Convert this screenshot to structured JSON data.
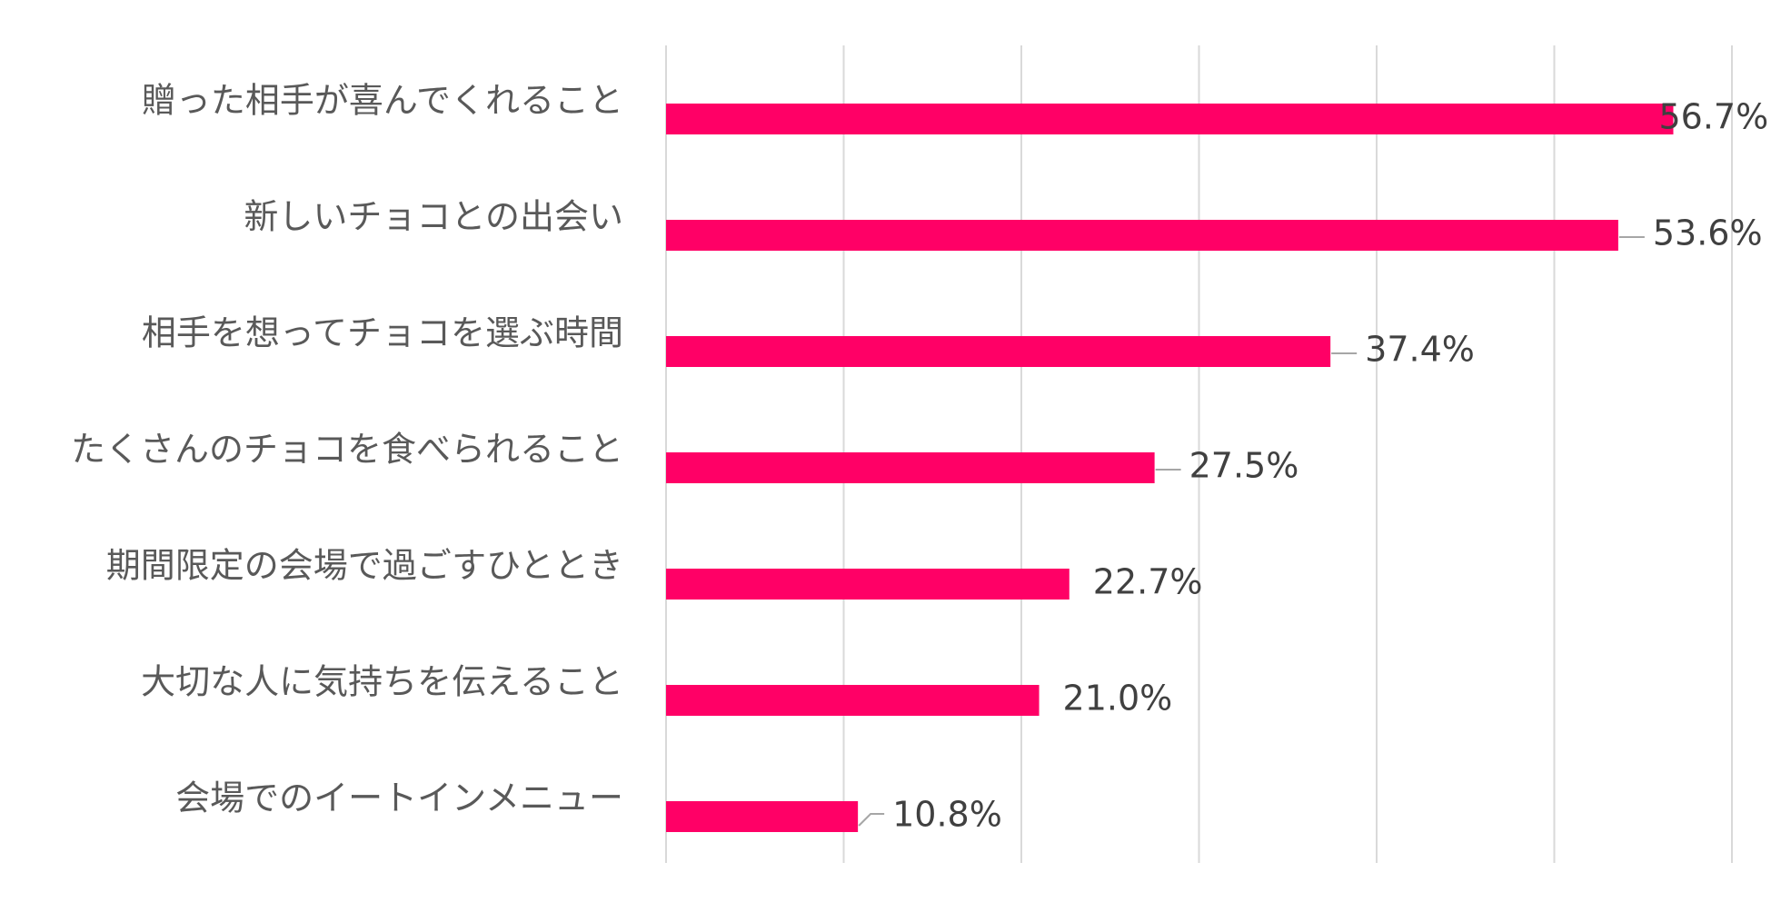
{
  "chart_data": {
    "type": "bar",
    "orientation": "horizontal",
    "title": "",
    "xlabel": "",
    "ylabel": "",
    "categories": [
      "贈った相手が喜んでくれること",
      "新しいチョコとの出会い",
      "相手を想ってチョコを選ぶ時間",
      "たくさんのチョコを食べられること",
      "期間限定の会場で過ごすひととき",
      "大切な人に気持ちを伝えること",
      "会場でのイートインメニュー"
    ],
    "values": [
      56.7,
      53.6,
      37.4,
      27.5,
      22.7,
      21.0,
      10.8
    ],
    "value_labels": [
      "56.7%",
      "53.6%",
      "37.4%",
      "27.5%",
      "22.7%",
      "21.0%",
      "10.8%"
    ],
    "xlim": [
      0,
      60
    ],
    "grid_step": 10,
    "grid": true,
    "legend": "none",
    "colors": {
      "bar": "#ff0066",
      "grid": "#d9d9d9",
      "leader": "#a6a6a6",
      "category_text": "#595959",
      "value_text": "#404040"
    }
  }
}
